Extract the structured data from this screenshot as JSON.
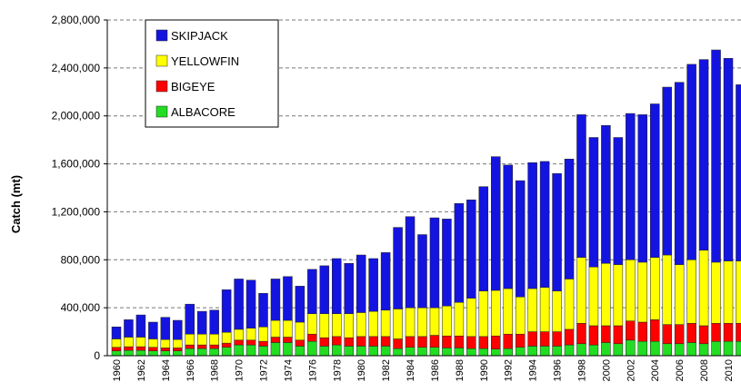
{
  "chart_data": {
    "type": "stacked_bar",
    "y_label": "Catch (mt)",
    "categories": [
      "1960",
      null,
      "1962",
      null,
      "1964",
      null,
      "1966",
      null,
      "1968",
      null,
      "1970",
      null,
      "1972",
      null,
      "1974",
      null,
      "1976",
      null,
      "1978",
      null,
      "1980",
      null,
      "1982",
      null,
      "1984",
      null,
      "1986",
      null,
      "1988",
      null,
      "1990",
      null,
      "1992",
      null,
      "1994",
      null,
      "1996",
      null,
      "1998",
      null,
      "2000",
      null,
      "2002",
      null,
      "2004",
      null,
      "2006",
      null,
      "2008",
      null,
      "2010",
      null
    ],
    "series": [
      {
        "name": "SKIPJACK",
        "color": "#1414e0",
        "values": [
          100000,
          145000,
          185000,
          140000,
          185000,
          160000,
          250000,
          190000,
          200000,
          355000,
          420000,
          400000,
          280000,
          345000,
          365000,
          300000,
          370000,
          400000,
          460000,
          420000,
          480000,
          440000,
          480000,
          680000,
          760000,
          610000,
          750000,
          725000,
          825000,
          820000,
          870000,
          1115000,
          1030000,
          970000,
          1050000,
          1050000,
          980000,
          1000000,
          1190000,
          1080000,
          1150000,
          1060000,
          1220000,
          1230000,
          1280000,
          1400000,
          1520000,
          1630000,
          1590000,
          1770000,
          1690000,
          1470000
        ]
      },
      {
        "name": "YELLOWFIN",
        "color": "#ffff00",
        "values": [
          70000,
          80000,
          80000,
          70000,
          70000,
          70000,
          90000,
          90000,
          90000,
          90000,
          90000,
          100000,
          120000,
          140000,
          140000,
          150000,
          170000,
          200000,
          190000,
          200000,
          200000,
          210000,
          220000,
          250000,
          240000,
          240000,
          230000,
          250000,
          280000,
          320000,
          380000,
          380000,
          380000,
          310000,
          360000,
          370000,
          340000,
          420000,
          550000,
          490000,
          520000,
          510000,
          510000,
          500000,
          520000,
          580000,
          500000,
          530000,
          630000,
          510000,
          520000,
          520000
        ]
      },
      {
        "name": "BIGEYE",
        "color": "#ff0000",
        "values": [
          30000,
          30000,
          30000,
          30000,
          25000,
          25000,
          30000,
          30000,
          30000,
          35000,
          40000,
          40000,
          40000,
          45000,
          45000,
          50000,
          60000,
          70000,
          70000,
          70000,
          80000,
          80000,
          80000,
          80000,
          90000,
          90000,
          100000,
          100000,
          100000,
          100000,
          100000,
          110000,
          120000,
          110000,
          120000,
          120000,
          120000,
          130000,
          170000,
          160000,
          140000,
          150000,
          160000,
          160000,
          180000,
          160000,
          160000,
          160000,
          150000,
          150000,
          150000,
          150000
        ]
      },
      {
        "name": "ALBACORE",
        "color": "#22dd22",
        "values": [
          40000,
          45000,
          45000,
          40000,
          40000,
          40000,
          60000,
          60000,
          60000,
          70000,
          90000,
          90000,
          80000,
          110000,
          110000,
          80000,
          120000,
          80000,
          90000,
          80000,
          80000,
          80000,
          80000,
          60000,
          70000,
          70000,
          70000,
          65000,
          65000,
          60000,
          60000,
          55000,
          60000,
          70000,
          80000,
          80000,
          80000,
          90000,
          100000,
          90000,
          110000,
          100000,
          130000,
          120000,
          120000,
          100000,
          100000,
          110000,
          100000,
          120000,
          120000,
          120000
        ]
      }
    ],
    "ylim": [
      0,
      2800000
    ],
    "yticks": [
      0,
      {
        "value": 400000,
        "label": "400,000"
      },
      {
        "value": 800000,
        "label": "800,000"
      },
      {
        "value": 1200000,
        "label": "1,200,000"
      },
      {
        "value": 1600000,
        "label": "1,600,000"
      },
      {
        "value": 2000000,
        "label": "2,000,000"
      },
      {
        "value": 2400000,
        "label": "2,400,000"
      },
      {
        "value": 2800000,
        "label": "2,800,000"
      }
    ],
    "grid": true,
    "legend": "upper left"
  }
}
